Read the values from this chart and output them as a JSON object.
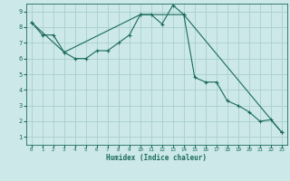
{
  "xlabel": "Humidex (Indice chaleur)",
  "bg_color": "#cce8e8",
  "grid_color": "#aacece",
  "line_color": "#1a6b5a",
  "xlim": [
    -0.5,
    23.5
  ],
  "ylim": [
    0.5,
    9.5
  ],
  "xticks": [
    0,
    1,
    2,
    3,
    4,
    5,
    6,
    7,
    8,
    9,
    10,
    11,
    12,
    13,
    14,
    15,
    16,
    17,
    18,
    19,
    20,
    21,
    22,
    23
  ],
  "yticks": [
    1,
    2,
    3,
    4,
    5,
    6,
    7,
    8,
    9
  ],
  "series1_x": [
    0,
    1,
    2,
    3,
    4,
    5,
    6,
    7,
    8,
    9,
    10,
    11,
    12,
    13,
    14,
    15,
    16,
    17,
    18,
    19,
    20,
    21,
    22,
    23
  ],
  "series1_y": [
    8.3,
    7.5,
    7.5,
    6.4,
    6.0,
    6.0,
    6.5,
    6.5,
    7.0,
    7.5,
    8.8,
    8.8,
    8.2,
    9.4,
    8.8,
    4.8,
    4.5,
    4.5,
    3.3,
    3.0,
    2.6,
    2.0,
    2.1,
    1.3
  ],
  "series2_x": [
    0,
    3,
    10,
    14,
    23
  ],
  "series2_y": [
    8.3,
    6.4,
    8.8,
    8.8,
    1.3
  ]
}
